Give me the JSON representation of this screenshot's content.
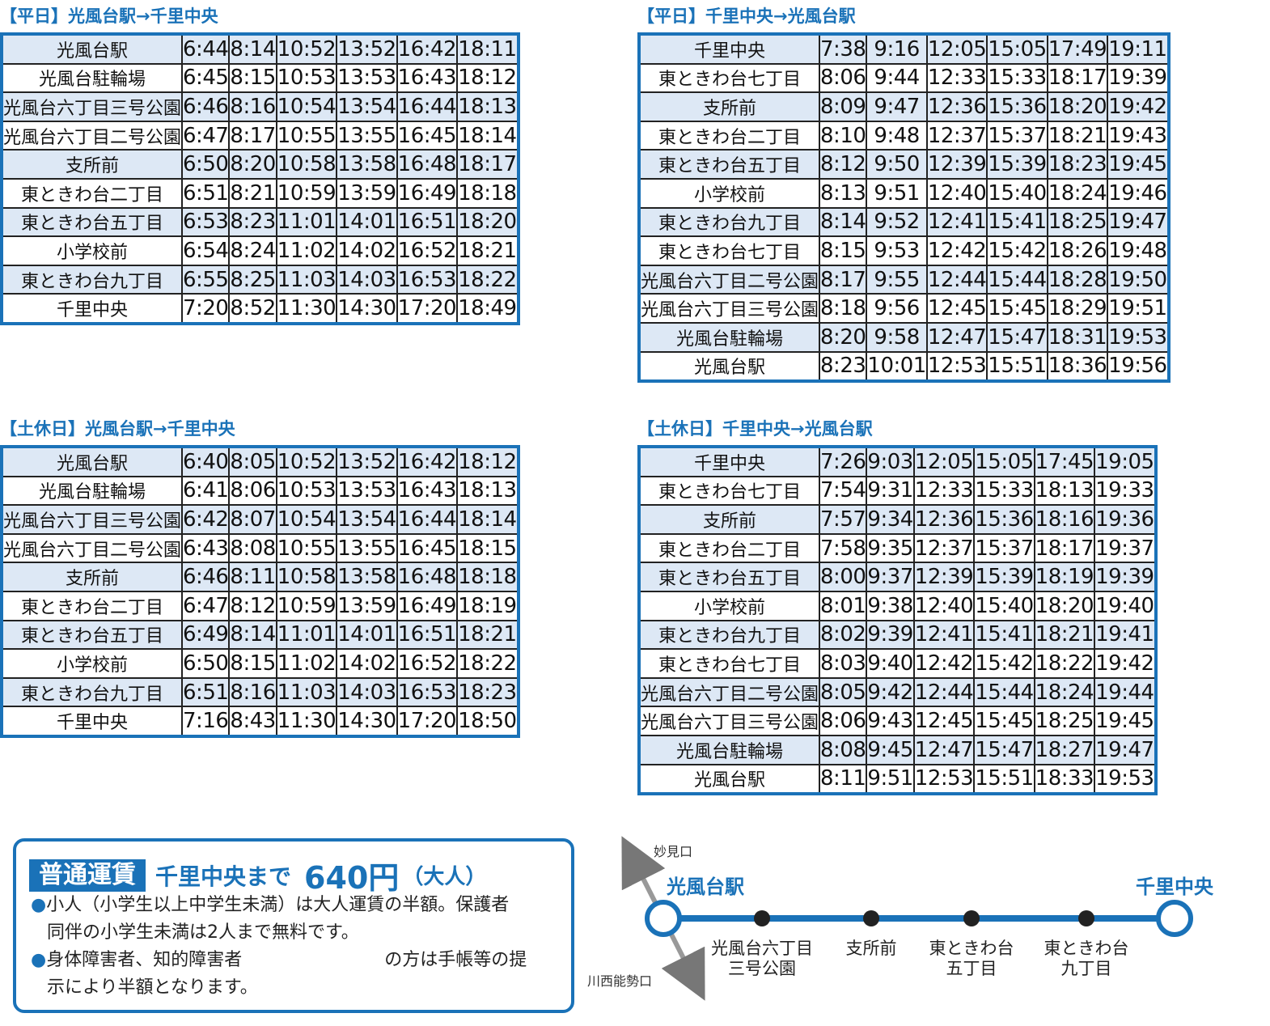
{
  "timetables": [
    {
      "title": "【平日】光風台駅→千里中央",
      "rows": [
        {
          "stop": "光風台駅",
          "times": [
            "6:44",
            "8:14",
            "10:52",
            "13:52",
            "16:42",
            "18:11"
          ]
        },
        {
          "stop": "光風台駐輪場",
          "times": [
            "6:45",
            "8:15",
            "10:53",
            "13:53",
            "16:43",
            "18:12"
          ]
        },
        {
          "stop": "光風台六丁目三号公園",
          "times": [
            "6:46",
            "8:16",
            "10:54",
            "13:54",
            "16:44",
            "18:13"
          ]
        },
        {
          "stop": "光風台六丁目二号公園",
          "times": [
            "6:47",
            "8:17",
            "10:55",
            "13:55",
            "16:45",
            "18:14"
          ]
        },
        {
          "stop": "支所前",
          "times": [
            "6:50",
            "8:20",
            "10:58",
            "13:58",
            "16:48",
            "18:17"
          ]
        },
        {
          "stop": "東ときわ台二丁目",
          "times": [
            "6:51",
            "8:21",
            "10:59",
            "13:59",
            "16:49",
            "18:18"
          ]
        },
        {
          "stop": "東ときわ台五丁目",
          "times": [
            "6:53",
            "8:23",
            "11:01",
            "14:01",
            "16:51",
            "18:20"
          ]
        },
        {
          "stop": "小学校前",
          "times": [
            "6:54",
            "8:24",
            "11:02",
            "14:02",
            "16:52",
            "18:21"
          ]
        },
        {
          "stop": "東ときわ台九丁目",
          "times": [
            "6:55",
            "8:25",
            "11:03",
            "14:03",
            "16:53",
            "18:22"
          ]
        },
        {
          "stop": "千里中央",
          "times": [
            "7:20",
            "8:52",
            "11:30",
            "14:30",
            "17:20",
            "18:49"
          ]
        }
      ]
    },
    {
      "title": "【平日】千里中央→光風台駅",
      "rows": [
        {
          "stop": "千里中央",
          "times": [
            "7:38",
            "9:16",
            "12:05",
            "15:05",
            "17:49",
            "19:11"
          ]
        },
        {
          "stop": "東ときわ台七丁目",
          "times": [
            "8:06",
            "9:44",
            "12:33",
            "15:33",
            "18:17",
            "19:39"
          ]
        },
        {
          "stop": "支所前",
          "times": [
            "8:09",
            "9:47",
            "12:36",
            "15:36",
            "18:20",
            "19:42"
          ]
        },
        {
          "stop": "東ときわ台二丁目",
          "times": [
            "8:10",
            "9:48",
            "12:37",
            "15:37",
            "18:21",
            "19:43"
          ]
        },
        {
          "stop": "東ときわ台五丁目",
          "times": [
            "8:12",
            "9:50",
            "12:39",
            "15:39",
            "18:23",
            "19:45"
          ]
        },
        {
          "stop": "小学校前",
          "times": [
            "8:13",
            "9:51",
            "12:40",
            "15:40",
            "18:24",
            "19:46"
          ]
        },
        {
          "stop": "東ときわ台九丁目",
          "times": [
            "8:14",
            "9:52",
            "12:41",
            "15:41",
            "18:25",
            "19:47"
          ]
        },
        {
          "stop": "東ときわ台七丁目",
          "times": [
            "8:15",
            "9:53",
            "12:42",
            "15:42",
            "18:26",
            "19:48"
          ]
        },
        {
          "stop": "光風台六丁目二号公園",
          "times": [
            "8:17",
            "9:55",
            "12:44",
            "15:44",
            "18:28",
            "19:50"
          ]
        },
        {
          "stop": "光風台六丁目三号公園",
          "times": [
            "8:18",
            "9:56",
            "12:45",
            "15:45",
            "18:29",
            "19:51"
          ]
        },
        {
          "stop": "光風台駐輪場",
          "times": [
            "8:20",
            "9:58",
            "12:47",
            "15:47",
            "18:31",
            "19:53"
          ]
        },
        {
          "stop": "光風台駅",
          "times": [
            "8:23",
            "10:01",
            "12:53",
            "15:51",
            "18:36",
            "19:56"
          ]
        }
      ]
    },
    {
      "title": "【土休日】光風台駅→千里中央",
      "rows": [
        {
          "stop": "光風台駅",
          "times": [
            "6:40",
            "8:05",
            "10:52",
            "13:52",
            "16:42",
            "18:12"
          ]
        },
        {
          "stop": "光風台駐輪場",
          "times": [
            "6:41",
            "8:06",
            "10:53",
            "13:53",
            "16:43",
            "18:13"
          ]
        },
        {
          "stop": "光風台六丁目三号公園",
          "times": [
            "6:42",
            "8:07",
            "10:54",
            "13:54",
            "16:44",
            "18:14"
          ]
        },
        {
          "stop": "光風台六丁目二号公園",
          "times": [
            "6:43",
            "8:08",
            "10:55",
            "13:55",
            "16:45",
            "18:15"
          ]
        },
        {
          "stop": "支所前",
          "times": [
            "6:46",
            "8:11",
            "10:58",
            "13:58",
            "16:48",
            "18:18"
          ]
        },
        {
          "stop": "東ときわ台二丁目",
          "times": [
            "6:47",
            "8:12",
            "10:59",
            "13:59",
            "16:49",
            "18:19"
          ]
        },
        {
          "stop": "東ときわ台五丁目",
          "times": [
            "6:49",
            "8:14",
            "11:01",
            "14:01",
            "16:51",
            "18:21"
          ]
        },
        {
          "stop": "小学校前",
          "times": [
            "6:50",
            "8:15",
            "11:02",
            "14:02",
            "16:52",
            "18:22"
          ]
        },
        {
          "stop": "東ときわ台九丁目",
          "times": [
            "6:51",
            "8:16",
            "11:03",
            "14:03",
            "16:53",
            "18:23"
          ]
        },
        {
          "stop": "千里中央",
          "times": [
            "7:16",
            "8:43",
            "11:30",
            "14:30",
            "17:20",
            "18:50"
          ]
        }
      ]
    },
    {
      "title": "【土休日】千里中央→光風台駅",
      "rows": [
        {
          "stop": "千里中央",
          "times": [
            "7:26",
            "9:03",
            "12:05",
            "15:05",
            "17:45",
            "19:05"
          ]
        },
        {
          "stop": "東ときわ台七丁目",
          "times": [
            "7:54",
            "9:31",
            "12:33",
            "15:33",
            "18:13",
            "19:33"
          ]
        },
        {
          "stop": "支所前",
          "times": [
            "7:57",
            "9:34",
            "12:36",
            "15:36",
            "18:16",
            "19:36"
          ]
        },
        {
          "stop": "東ときわ台二丁目",
          "times": [
            "7:58",
            "9:35",
            "12:37",
            "15:37",
            "18:17",
            "19:37"
          ]
        },
        {
          "stop": "東ときわ台五丁目",
          "times": [
            "8:00",
            "9:37",
            "12:39",
            "15:39",
            "18:19",
            "19:39"
          ]
        },
        {
          "stop": "小学校前",
          "times": [
            "8:01",
            "9:38",
            "12:40",
            "15:40",
            "18:20",
            "19:40"
          ]
        },
        {
          "stop": "東ときわ台九丁目",
          "times": [
            "8:02",
            "9:39",
            "12:41",
            "15:41",
            "18:21",
            "19:41"
          ]
        },
        {
          "stop": "東ときわ台七丁目",
          "times": [
            "8:03",
            "9:40",
            "12:42",
            "15:42",
            "18:22",
            "19:42"
          ]
        },
        {
          "stop": "光風台六丁目二号公園",
          "times": [
            "8:05",
            "9:42",
            "12:44",
            "15:44",
            "18:24",
            "19:44"
          ]
        },
        {
          "stop": "光風台六丁目三号公園",
          "times": [
            "8:06",
            "9:43",
            "12:45",
            "15:45",
            "18:25",
            "19:45"
          ]
        },
        {
          "stop": "光風台駐輪場",
          "times": [
            "8:08",
            "9:45",
            "12:47",
            "15:47",
            "18:27",
            "19:47"
          ]
        },
        {
          "stop": "光風台駅",
          "times": [
            "8:11",
            "9:51",
            "12:53",
            "15:51",
            "18:33",
            "19:53"
          ]
        }
      ]
    }
  ],
  "fare": {
    "badge": "普通運賃",
    "destination": "千里中央まで",
    "amount": "640円",
    "note": "（大人）",
    "items": [
      {
        "bullet": "●",
        "line1": "小人（小学生以上中学生未満）は大人運賃の半額。保護者",
        "line2": "同伴の小学生未満は2人まで無料です。"
      },
      {
        "bullet": "●",
        "line1": "身体障害者、知的障害者　　　　　　　　の方は手帳等の提",
        "line2": "示により半額となります。"
      }
    ]
  },
  "route_map": {
    "origin": "光風台駅",
    "terminus": "千里中央",
    "stops": [
      "光風台六丁目\n三号公園",
      "支所前",
      "東ときわ台\n五丁目",
      "東ときわ台\n九丁目"
    ],
    "direction_up": "妙見口",
    "direction_down": "川西能勢口",
    "line_color": "#1a72b8"
  }
}
